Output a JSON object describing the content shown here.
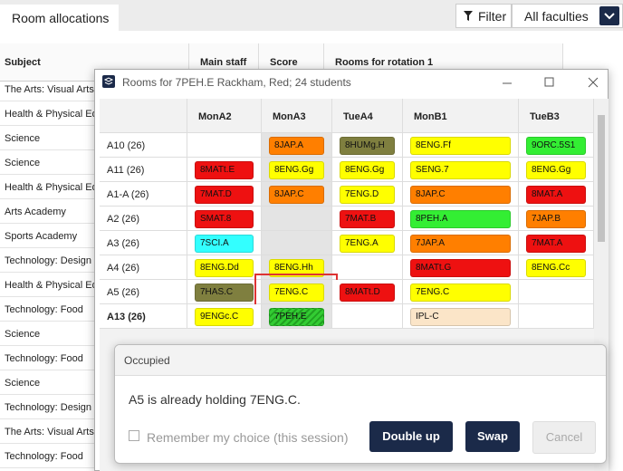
{
  "header": {
    "tab": "Room allocations",
    "filter": "Filter",
    "faculty": "All faculties"
  },
  "background_table": {
    "columns": [
      "Subject",
      "Main staff",
      "Score",
      "Rooms for rotation 1"
    ],
    "rows": [
      "The Arts: Visual Arts",
      "Health & Physical Ed",
      "Science",
      "Science",
      "Health & Physical Ed",
      "Arts Academy",
      "Sports Academy",
      "Technology: Design",
      "Health & Physical Ed",
      "Technology: Food",
      "Science",
      "Technology: Food",
      "Science",
      "Technology: Design",
      "The Arts: Visual Arts",
      "Technology: Food"
    ]
  },
  "dialog": {
    "title": "Rooms for 7PEH.E Rackham, Red; 24 students",
    "columns": [
      "MonA2",
      "MonA3",
      "TueA4",
      "MonB1",
      "TueB3"
    ],
    "rows": [
      {
        "room": "A10 (26)",
        "cells": [
          null,
          {
            "text": "8JAP.A",
            "color": "#ff7f00"
          },
          {
            "text": "8HUMg.H",
            "color": "#7f7f3f"
          },
          {
            "text": "8ENG.Ff",
            "color": "#ffff00"
          },
          {
            "text": "9ORC.5S1",
            "color": "#33ee33"
          }
        ]
      },
      {
        "room": "A11 (26)",
        "cells": [
          {
            "text": "8MATt.E",
            "color": "#ee1111"
          },
          {
            "text": "8ENG.Gg",
            "color": "#ffff00"
          },
          {
            "text": "8ENG.Gg",
            "color": "#ffff00"
          },
          {
            "text": "SENG.7",
            "color": "#ffff00"
          },
          {
            "text": "8ENG.Gg",
            "color": "#ffff00"
          }
        ]
      },
      {
        "room": "A1-A (26)",
        "cells": [
          {
            "text": "7MAT.D",
            "color": "#ee1111"
          },
          {
            "text": "8JAP.C",
            "color": "#ff7f00"
          },
          {
            "text": "7ENG.D",
            "color": "#ffff00"
          },
          {
            "text": "8JAP.C",
            "color": "#ff7f00"
          },
          {
            "text": "8MAT.A",
            "color": "#ee1111"
          }
        ]
      },
      {
        "room": "A2 (26)",
        "cells": [
          {
            "text": "SMAT.8",
            "color": "#ee1111"
          },
          null,
          {
            "text": "7MAT.B",
            "color": "#ee1111"
          },
          {
            "text": "8PEH.A",
            "color": "#33ee33"
          },
          {
            "text": "7JAP.B",
            "color": "#ff7f00"
          }
        ]
      },
      {
        "room": "A3 (26)",
        "cells": [
          {
            "text": "7SCI.A",
            "color": "#33ffff"
          },
          null,
          {
            "text": "7ENG.A",
            "color": "#ffff00"
          },
          {
            "text": "7JAP.A",
            "color": "#ff7f00"
          },
          {
            "text": "7MAT.A",
            "color": "#ee1111"
          }
        ]
      },
      {
        "room": "A4 (26)",
        "cells": [
          {
            "text": "8ENG.Dd",
            "color": "#ffff00"
          },
          {
            "text": "8ENG.Hh",
            "color": "#ffff00"
          },
          null,
          {
            "text": "8MATt.G",
            "color": "#ee1111"
          },
          {
            "text": "8ENG.Cc",
            "color": "#ffff00"
          }
        ]
      },
      {
        "room": "A5 (26)",
        "cells": [
          {
            "text": "7HAS.C",
            "color": "#7f7f3f"
          },
          {
            "text": "7ENG.C",
            "color": "#ffff00"
          },
          {
            "text": "8MATt.D",
            "color": "#ee1111"
          },
          {
            "text": "7ENG.C",
            "color": "#ffff00"
          },
          null
        ]
      },
      {
        "room": "A13 (26)",
        "bold": true,
        "cells": [
          {
            "text": "9ENGc.C",
            "color": "#ffff00"
          },
          {
            "text": "7PEH.E",
            "color": "#33cc33"
          },
          null,
          {
            "text": "IPL-C",
            "color": "#fbe5c8"
          },
          null
        ]
      }
    ]
  },
  "modal": {
    "title": "Occupied",
    "message": "A5 is already holding 7ENG.C.",
    "checkbox": "Remember my choice (this session)",
    "buttons": [
      "Double up",
      "Swap",
      "Cancel"
    ]
  }
}
